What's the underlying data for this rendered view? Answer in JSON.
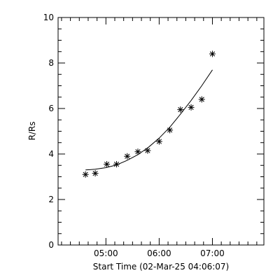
{
  "chart_data": {
    "type": "scatter",
    "xlabel": "Start Time (02-Mar-25 04:06:07)",
    "ylabel": "R/Rs",
    "xlim": [
      "04:06:07",
      "07:58:00"
    ],
    "ylim": [
      0,
      10
    ],
    "x_ticks": [
      "05:00",
      "06:00",
      "07:00"
    ],
    "y_ticks": [
      "0",
      "2",
      "4",
      "6",
      "8",
      "10"
    ],
    "series": [
      {
        "marker": "asterisk",
        "x": [
          "04:37",
          "04:48",
          "05:01",
          "05:12",
          "05:24",
          "05:36",
          "05:47",
          "06:00",
          "06:12",
          "06:24",
          "06:36",
          "06:48",
          "07:00"
        ],
        "y": [
          3.1,
          3.15,
          3.55,
          3.55,
          3.9,
          4.1,
          4.15,
          4.55,
          5.05,
          5.95,
          6.05,
          6.4,
          8.4
        ]
      },
      {
        "kind": "fit",
        "x": [
          "04:37",
          "04:48",
          "05:00",
          "05:12",
          "05:24",
          "05:36",
          "05:48",
          "06:00",
          "06:12",
          "06:24",
          "06:36",
          "06:48",
          "07:00"
        ],
        "y": [
          3.3,
          3.33,
          3.4,
          3.52,
          3.72,
          3.97,
          4.3,
          4.7,
          5.18,
          5.75,
          6.35,
          7.0,
          7.7
        ]
      }
    ],
    "grid": false,
    "legend": "none"
  }
}
